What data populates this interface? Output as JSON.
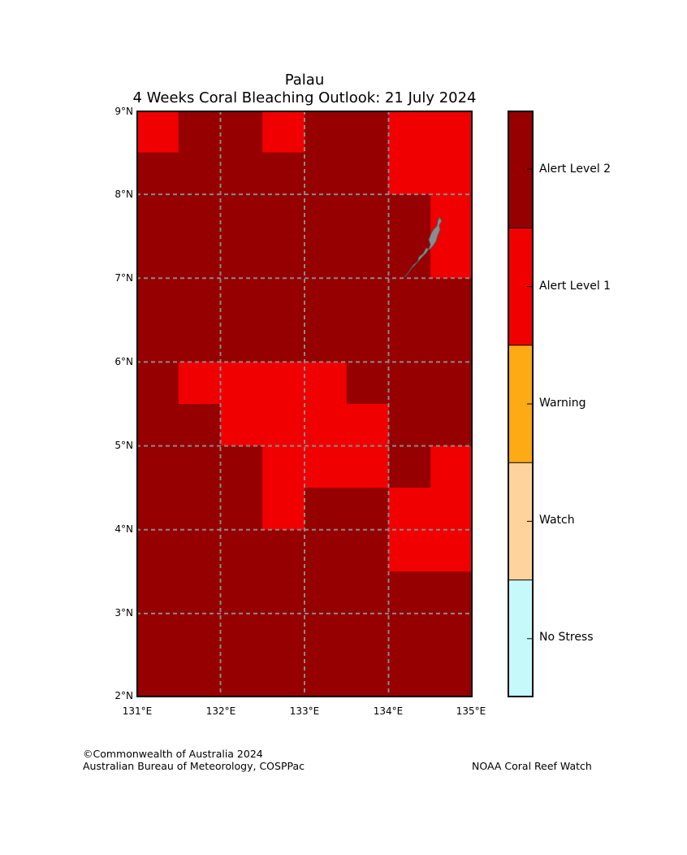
{
  "title": {
    "region": "Palau",
    "subtitle": "4 Weeks Coral Bleaching Outlook: 21 July 2024"
  },
  "map": {
    "lon_range": [
      131,
      135
    ],
    "lat_range": [
      2,
      9
    ],
    "cell_size_deg": 0.5,
    "lat_labels": [
      "9°N",
      "8°N",
      "7°N",
      "6°N",
      "5°N",
      "4°N",
      "3°N",
      "2°N"
    ],
    "lon_labels": [
      "131°E",
      "132°E",
      "133°E",
      "134°E",
      "135°E"
    ],
    "grid_rows_north_to_south": [
      [
        1,
        2,
        2,
        1,
        2,
        2,
        1,
        1
      ],
      [
        2,
        2,
        2,
        2,
        2,
        2,
        1,
        1
      ],
      [
        2,
        2,
        2,
        2,
        2,
        2,
        2,
        1
      ],
      [
        2,
        2,
        2,
        2,
        2,
        2,
        2,
        1
      ],
      [
        2,
        2,
        2,
        2,
        2,
        2,
        2,
        2
      ],
      [
        2,
        2,
        2,
        2,
        2,
        2,
        2,
        2
      ],
      [
        2,
        1,
        1,
        1,
        1,
        2,
        2,
        2
      ],
      [
        2,
        2,
        1,
        1,
        1,
        1,
        2,
        2
      ],
      [
        2,
        2,
        2,
        1,
        1,
        1,
        2,
        1
      ],
      [
        2,
        2,
        2,
        1,
        2,
        2,
        1,
        1
      ],
      [
        2,
        2,
        2,
        2,
        2,
        2,
        1,
        1
      ],
      [
        2,
        2,
        2,
        2,
        2,
        2,
        2,
        2
      ],
      [
        2,
        2,
        2,
        2,
        2,
        2,
        2,
        2
      ],
      [
        2,
        2,
        2,
        2,
        2,
        2,
        2,
        2
      ]
    ],
    "grid_value_legend": {
      "1": "Alert Level 1",
      "2": "Alert Level 2"
    }
  },
  "colorbar": {
    "levels": [
      {
        "label": "Alert Level 2",
        "color": "#960000"
      },
      {
        "label": "Alert Level 1",
        "color": "#f00000"
      },
      {
        "label": "Warning",
        "color": "#fdaa14"
      },
      {
        "label": "Watch",
        "color": "#ffd39b"
      },
      {
        "label": "No Stress",
        "color": "#c6fafa"
      }
    ]
  },
  "colors": {
    "grid_line": "#8a8a8a",
    "land": "#8c8c8c"
  },
  "footer": {
    "copyright": "©Commonwealth of Australia 2024",
    "agency": "Australian Bureau of Meteorology, COSPPac",
    "partner": "NOAA Coral Reef Watch"
  }
}
